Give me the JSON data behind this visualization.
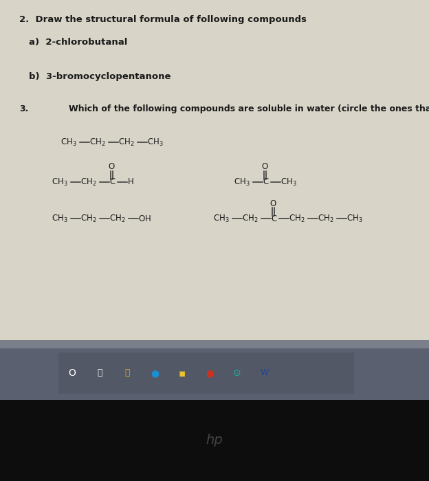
{
  "bg_color": "#d8d5c8",
  "paper_color": "#d8d5c8",
  "taskbar_bg": "#5a6070",
  "taskbar_icon_bg": "#4e5566",
  "black_bottom": "#111111",
  "separator_color": "#8888a0",
  "text_color": "#1a1a1a",
  "bond_color": "#333333",
  "title": "2.  Draw the structural formula of following compounds",
  "item_a": "a)  2-chlorobutanal",
  "item_b": "b)  3-bromocyclopentanone",
  "q3_num": "3.",
  "q3_text": "Which of the following compounds are soluble in water (circle the ones that are soluble)?",
  "oxygen_label": "O",
  "font_size_title": 9.5,
  "font_size_items": 9.5,
  "font_size_q3": 9.0,
  "font_size_compounds": 8.5
}
